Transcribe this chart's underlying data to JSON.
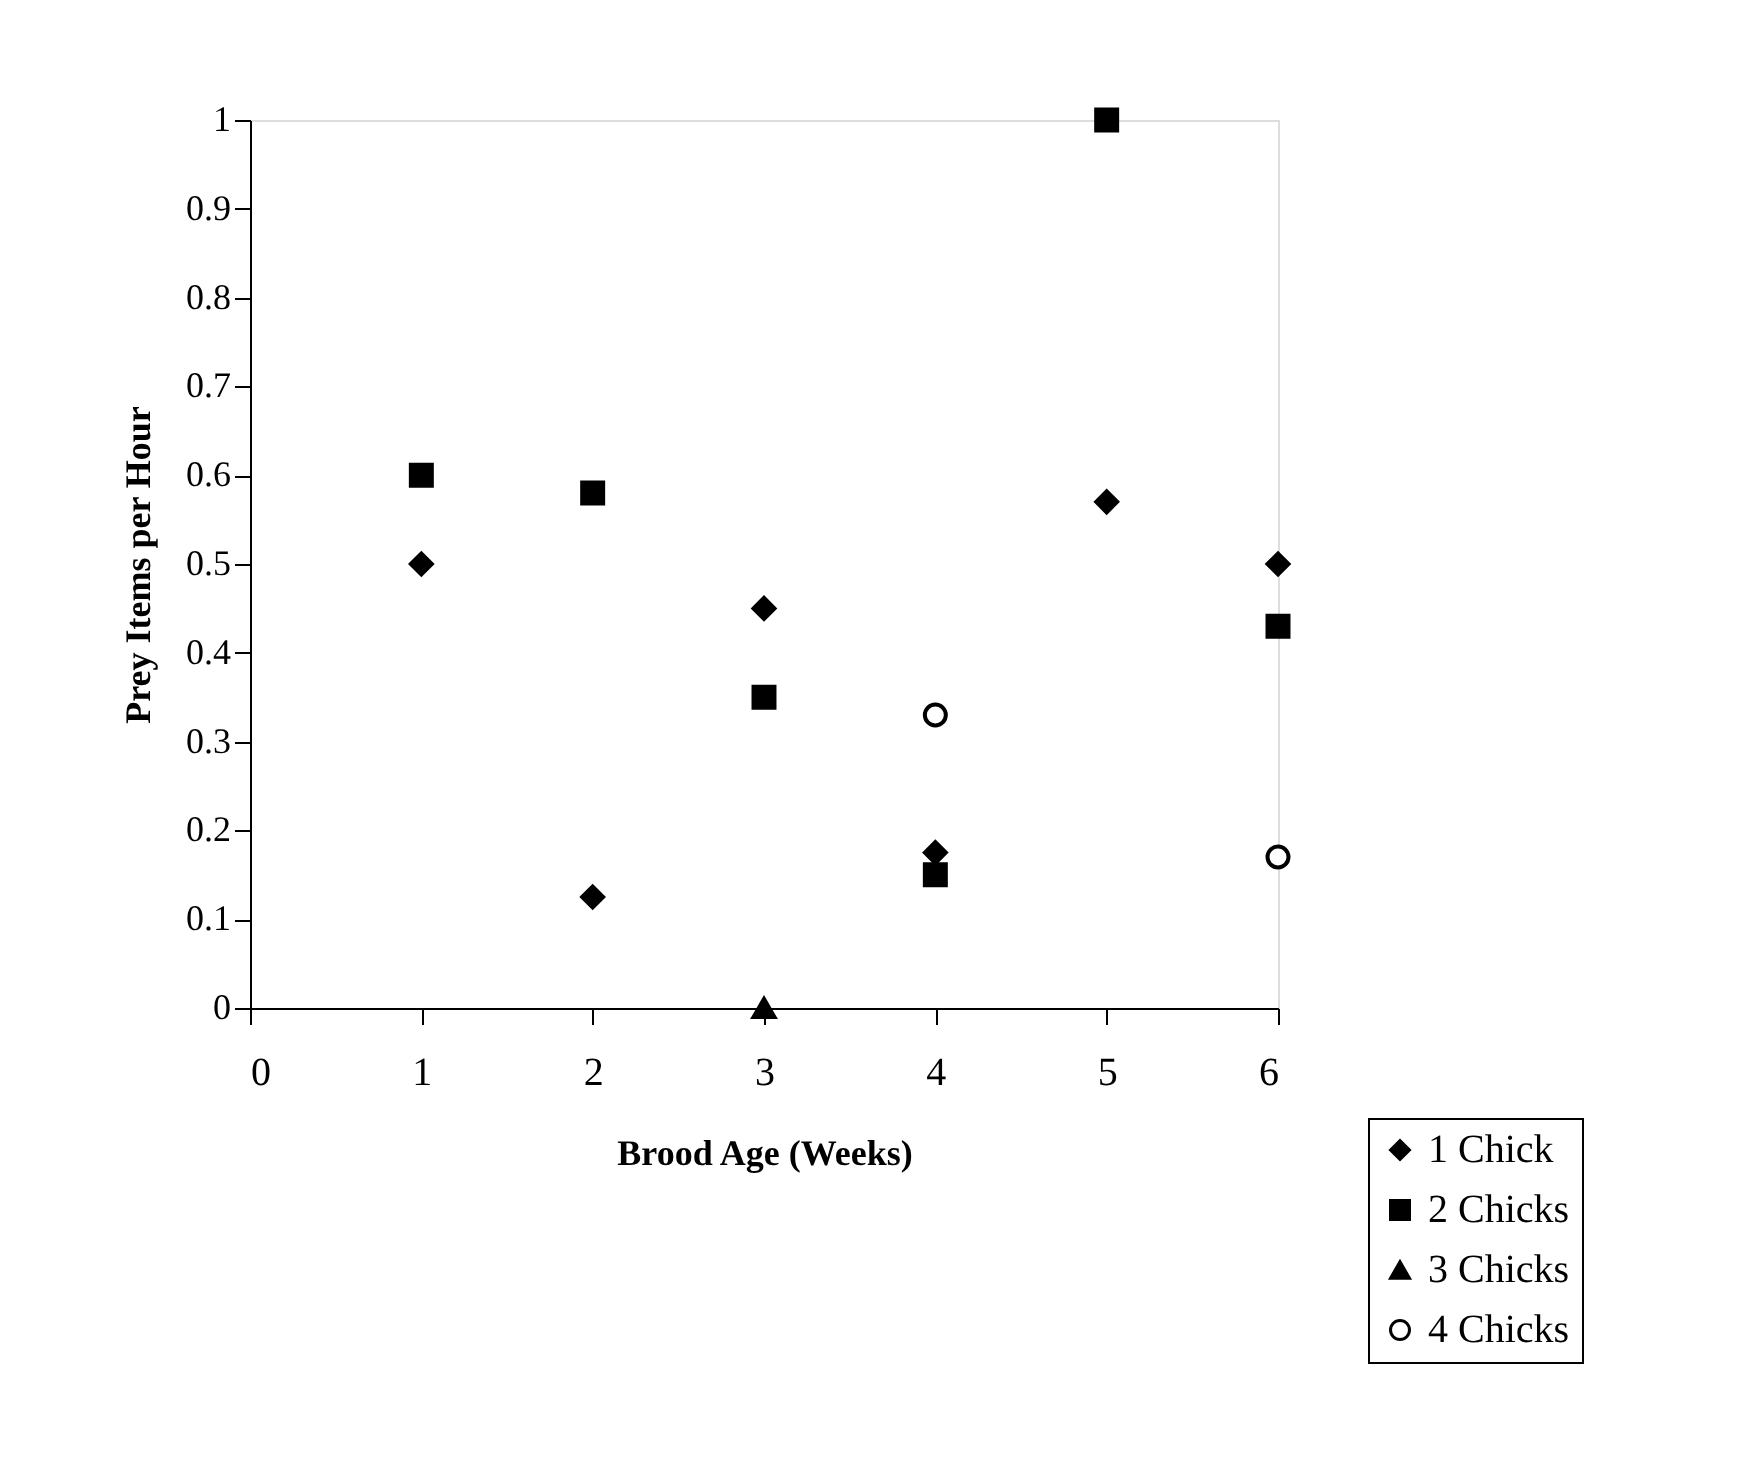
{
  "chart_data": {
    "type": "scatter",
    "xlabel": "Brood Age (Weeks)",
    "ylabel": "Prey Items per Hour",
    "x": [
      1,
      2,
      3,
      4,
      5,
      6
    ],
    "series": [
      {
        "name": "1 Chick",
        "color": "#000000",
        "marker": "diamond",
        "values": [
          0.5,
          0.125,
          0.45,
          0.175,
          0.57,
          0.5
        ]
      },
      {
        "name": "2 Chicks",
        "color": "#000000",
        "marker": "square",
        "values": [
          0.6,
          0.58,
          0.35,
          0.15,
          1,
          0.43
        ]
      },
      {
        "name": "3 Chicks",
        "color": "#000000",
        "marker": "triangle",
        "values": [
          null,
          null,
          0,
          null,
          null,
          null
        ]
      },
      {
        "name": "4 Chicks",
        "color": "#000000",
        "marker": "circle",
        "values": [
          null,
          null,
          null,
          0.33,
          null,
          0.17
        ]
      }
    ],
    "xlim": [
      0,
      6
    ],
    "xticks": [
      0,
      1,
      2,
      3,
      4,
      5,
      6
    ],
    "ylim": [
      0,
      1
    ],
    "yticks": [
      0,
      0.1,
      0.2,
      0.3,
      0.4,
      0.5,
      0.6,
      0.7,
      0.8,
      0.9,
      1
    ],
    "grid": false,
    "legend": "bottom right"
  }
}
